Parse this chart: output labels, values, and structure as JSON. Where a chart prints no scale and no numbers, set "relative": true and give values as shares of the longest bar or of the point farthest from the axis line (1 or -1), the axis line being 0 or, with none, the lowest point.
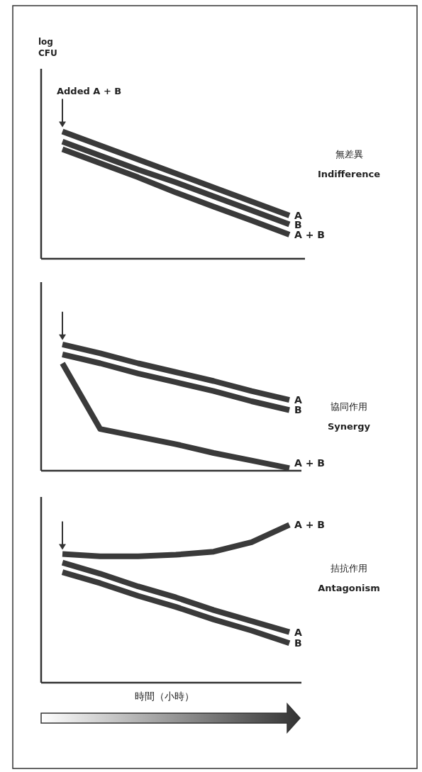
{
  "chart_data": [
    {
      "type": "line",
      "relative": true,
      "ylabel": "log CFU",
      "annotations": [
        "Added A + B",
        "無差異",
        "Indifference"
      ],
      "line_style": "solid",
      "categories": [
        null,
        null,
        null,
        null,
        null,
        null,
        null
      ],
      "series": [
        {
          "name": "A",
          "color": "#3a3a3a",
          "values": [
            1,
            0.89,
            0.78,
            0.67,
            0.56,
            0.45,
            0.34
          ]
        },
        {
          "name": "B",
          "color": "#3a3a3a",
          "values": [
            0.92,
            0.81,
            0.7,
            0.6,
            0.49,
            0.38,
            0.27
          ]
        },
        {
          "name": "A + B",
          "color": "#3a3a3a",
          "values": [
            0.86,
            0.75,
            0.64,
            0.52,
            0.41,
            0.3,
            0.19
          ]
        }
      ]
    },
    {
      "type": "line",
      "relative": true,
      "annotations": [
        "協同作用",
        "Synergy"
      ],
      "line_style": "solid",
      "categories": [
        null,
        null,
        null,
        null,
        null,
        null,
        null
      ],
      "series": [
        {
          "name": "A",
          "color": "#3a3a3a",
          "values": [
            1,
            0.93,
            0.85,
            0.78,
            0.71,
            0.63,
            0.56
          ]
        },
        {
          "name": "B",
          "color": "#3a3a3a",
          "values": [
            0.92,
            0.85,
            0.77,
            0.7,
            0.63,
            0.55,
            0.48
          ]
        },
        {
          "name": "A + B",
          "color": "#3a3a3a",
          "values": [
            0.85,
            0.33,
            0.27,
            0.21,
            0.14,
            0.08,
            0.02
          ]
        }
      ]
    },
    {
      "type": "line",
      "relative": true,
      "annotations": [
        "拮抗作用",
        "Antagonism"
      ],
      "xlabel": "時間（小時）",
      "line_style": "solid",
      "categories": [
        null,
        null,
        null,
        null,
        null,
        null,
        null
      ],
      "series": [
        {
          "name": "A + B",
          "color": "#3a3a3a",
          "values": [
            0.815,
            0.8,
            0.8,
            0.81,
            0.83,
            0.89,
            1
          ]
        },
        {
          "name": "A",
          "color": "#3a3a3a",
          "values": [
            0.76,
            0.69,
            0.61,
            0.54,
            0.46,
            0.39,
            0.32
          ]
        },
        {
          "name": "B",
          "color": "#3a3a3a",
          "values": [
            0.7,
            0.63,
            0.55,
            0.48,
            0.4,
            0.33,
            0.25
          ]
        }
      ]
    }
  ]
}
